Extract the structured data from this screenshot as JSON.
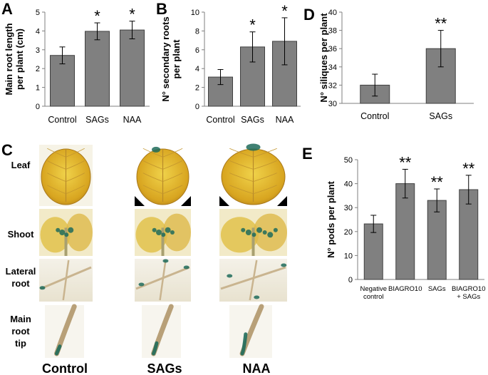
{
  "panel_labels": {
    "a": "A",
    "b": "B",
    "c": "C",
    "d": "D",
    "e": "E"
  },
  "chart_data": [
    {
      "id": "A",
      "type": "bar",
      "ylabel": "Main root length per plant (cm)",
      "categories": [
        "Control",
        "SAGs",
        "NAA"
      ],
      "values": [
        2.7,
        3.98,
        4.05
      ],
      "errors": [
        0.45,
        0.45,
        0.47
      ],
      "significance": [
        "",
        "*",
        "*"
      ],
      "ylim": [
        0,
        5
      ],
      "yticks": [
        0,
        1,
        2,
        3,
        4,
        5
      ],
      "color": "#808080"
    },
    {
      "id": "B",
      "type": "bar",
      "ylabel": "N° secondary roots per plant",
      "categories": [
        "Control",
        "SAGs",
        "NAA"
      ],
      "values": [
        3.1,
        6.3,
        6.9
      ],
      "errors": [
        0.8,
        1.6,
        2.5
      ],
      "significance": [
        "",
        "*",
        "*"
      ],
      "ylim": [
        0,
        10
      ],
      "yticks": [
        0,
        2,
        4,
        6,
        8,
        10
      ],
      "color": "#808080"
    },
    {
      "id": "D",
      "type": "bar",
      "ylabel": "N° siliques per plant",
      "categories": [
        "Control",
        "SAGs"
      ],
      "values": [
        32,
        36
      ],
      "errors": [
        1.2,
        2.0
      ],
      "significance": [
        "",
        "**"
      ],
      "ylim": [
        30,
        40
      ],
      "yticks": [
        30,
        32,
        34,
        36,
        38,
        40
      ],
      "color": "#808080"
    },
    {
      "id": "E",
      "type": "bar",
      "ylabel": "N° pods per plant",
      "categories": [
        [
          "Negative",
          "control"
        ],
        [
          "BIAGRO10"
        ],
        [
          "SAGs"
        ],
        [
          "BIAGRO10",
          "+ SAGs"
        ]
      ],
      "values": [
        23.2,
        40,
        33,
        37.5
      ],
      "errors": [
        3.6,
        6,
        4.8,
        6
      ],
      "significance": [
        "",
        "**",
        "**",
        "**"
      ],
      "ylim": [
        0,
        50
      ],
      "yticks": [
        0,
        10,
        20,
        30,
        40,
        50
      ],
      "color": "#808080"
    }
  ],
  "panel_c": {
    "rows": [
      "Leaf",
      "Shoot",
      "Lateral root",
      "Main root tip"
    ],
    "row_lines": [
      [
        "Leaf"
      ],
      [
        "Shoot"
      ],
      [
        "Lateral",
        "root"
      ],
      [
        "Main",
        "root",
        "tip"
      ]
    ],
    "columns": [
      "Control",
      "SAGs",
      "NAA"
    ],
    "image_colors": {
      "leaf": "#e6c030",
      "stain": "#1f6b5a",
      "root": "#c9b48f"
    }
  }
}
